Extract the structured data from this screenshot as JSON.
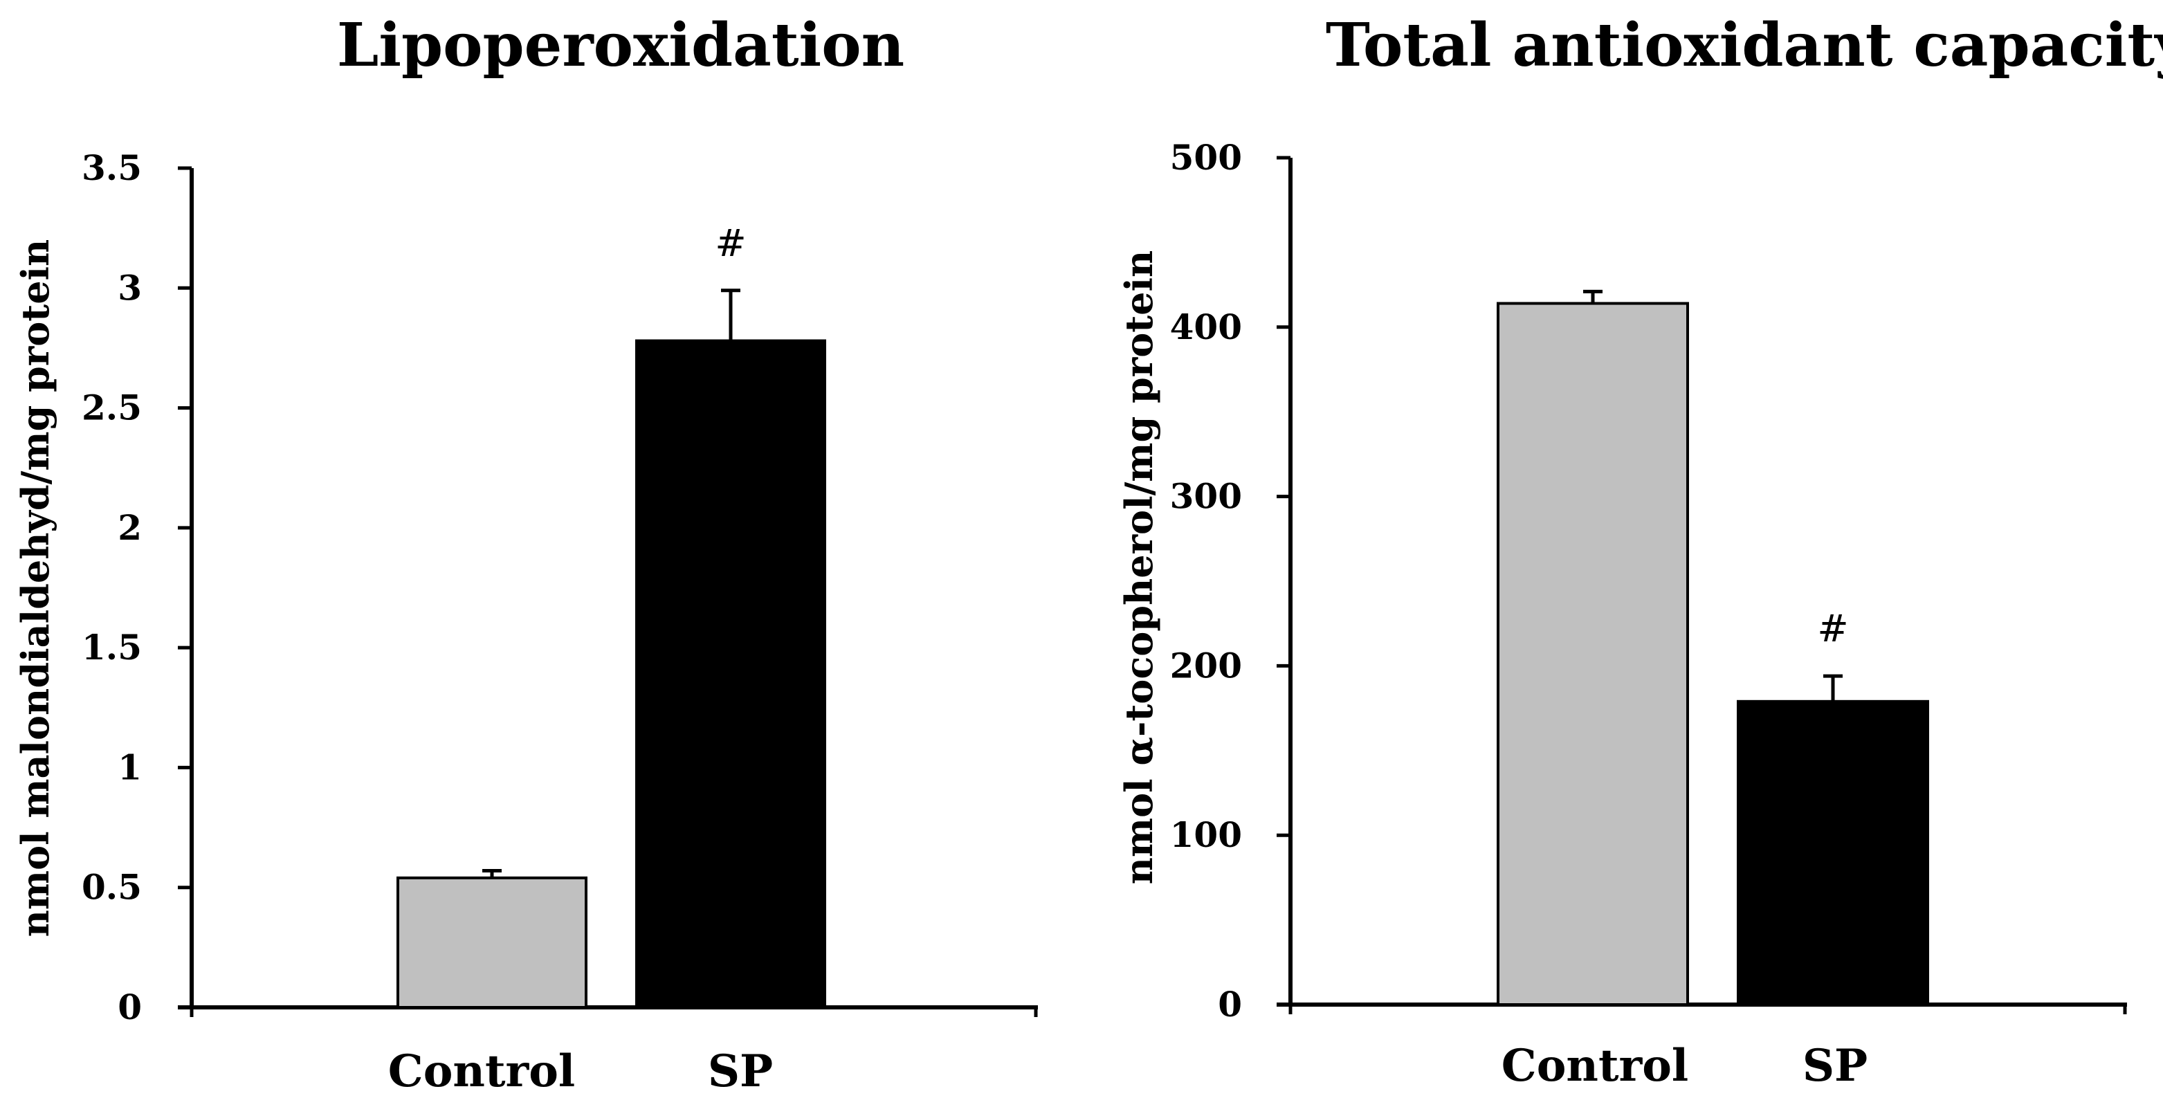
{
  "chart_data": [
    {
      "type": "bar",
      "title": "Lipoperoxidation",
      "ylabel": "nmol malondialdehyd/mg protein",
      "xlabel": "",
      "categories": [
        "Control",
        "SP"
      ],
      "values": [
        0.54,
        2.78
      ],
      "errors": [
        0.03,
        0.21
      ],
      "significance": [
        "",
        "#"
      ],
      "ylim": [
        0,
        3.5
      ],
      "yticks": [
        0,
        0.5,
        1,
        1.5,
        2,
        2.5,
        3,
        3.5
      ],
      "ytick_labels": [
        "0",
        "0.5",
        "1",
        "1.5",
        "2",
        "2.5",
        "3",
        "3.5"
      ],
      "colors": [
        "#c0c0c0",
        "#000000"
      ],
      "grid": false,
      "legend": "none"
    },
    {
      "type": "bar",
      "title": "Total antioxidant capacity",
      "ylabel": "nmol α-tocopherol/mg protein",
      "xlabel": "",
      "categories": [
        "Control",
        "SP"
      ],
      "values": [
        414,
        179
      ],
      "errors": [
        7,
        15
      ],
      "significance": [
        "",
        "#"
      ],
      "ylim": [
        0,
        500
      ],
      "yticks": [
        0,
        100,
        200,
        300,
        400,
        500
      ],
      "ytick_labels": [
        "0",
        "100",
        "200",
        "300",
        "400",
        "500"
      ],
      "colors": [
        "#c0c0c0",
        "#000000"
      ],
      "grid": false,
      "legend": "none"
    }
  ]
}
